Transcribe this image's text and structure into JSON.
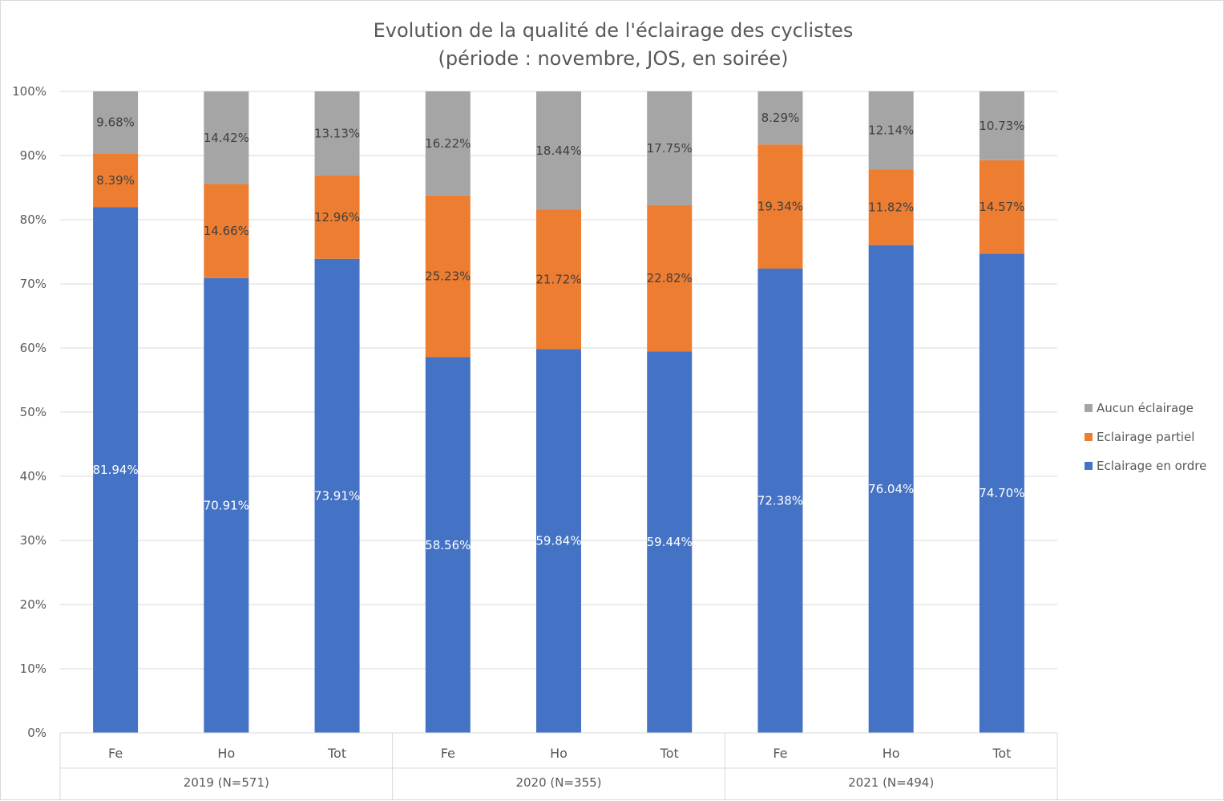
{
  "chart_data": {
    "type": "bar",
    "stacked": true,
    "title": "Evolution de la qualité de l'éclairage des cyclistes",
    "subtitle": "(période : novembre, JOS, en soirée)",
    "ylim": [
      0,
      100
    ],
    "yticks": [
      "0%",
      "10%",
      "20%",
      "30%",
      "40%",
      "50%",
      "60%",
      "70%",
      "80%",
      "90%",
      "100%"
    ],
    "grid": true,
    "legend_position": "right",
    "groups": [
      {
        "label": "2019 (N=571)",
        "categories": [
          "Fe",
          "Ho",
          "Tot"
        ]
      },
      {
        "label": "2020 (N=355)",
        "categories": [
          "Fe",
          "Ho",
          "Tot"
        ]
      },
      {
        "label": "2021 (N=494)",
        "categories": [
          "Fe",
          "Ho",
          "Tot"
        ]
      }
    ],
    "series": [
      {
        "name": "Eclairage en ordre",
        "color": "#4472c4",
        "label_color": "#ffffff",
        "values": [
          81.94,
          70.91,
          73.91,
          58.56,
          59.84,
          59.44,
          72.38,
          76.04,
          74.7
        ],
        "labels": [
          "81.94%",
          "70.91%",
          "73.91%",
          "58.56%",
          "59.84%",
          "59.44%",
          "72.38%",
          "76.04%",
          "74.70%"
        ]
      },
      {
        "name": "Eclairage partiel",
        "color": "#ed7d31",
        "label_color": "#404040",
        "values": [
          8.39,
          14.66,
          12.96,
          25.23,
          21.72,
          22.82,
          19.34,
          11.82,
          14.57
        ],
        "labels": [
          "8.39%",
          "14.66%",
          "12.96%",
          "25.23%",
          "21.72%",
          "22.82%",
          "19.34%",
          "11.82%",
          "14.57%"
        ]
      },
      {
        "name": "Aucun éclairage",
        "color": "#a5a5a5",
        "label_color": "#404040",
        "values": [
          9.68,
          14.42,
          13.13,
          16.22,
          18.44,
          17.75,
          8.29,
          12.14,
          10.73
        ],
        "labels": [
          "9.68%",
          "14.42%",
          "13.13%",
          "16.22%",
          "18.44%",
          "17.75%",
          "8.29%",
          "12.14%",
          "10.73%"
        ]
      }
    ],
    "legend_order": [
      "Aucun éclairage",
      "Eclairage partiel",
      "Eclairage en ordre"
    ]
  }
}
